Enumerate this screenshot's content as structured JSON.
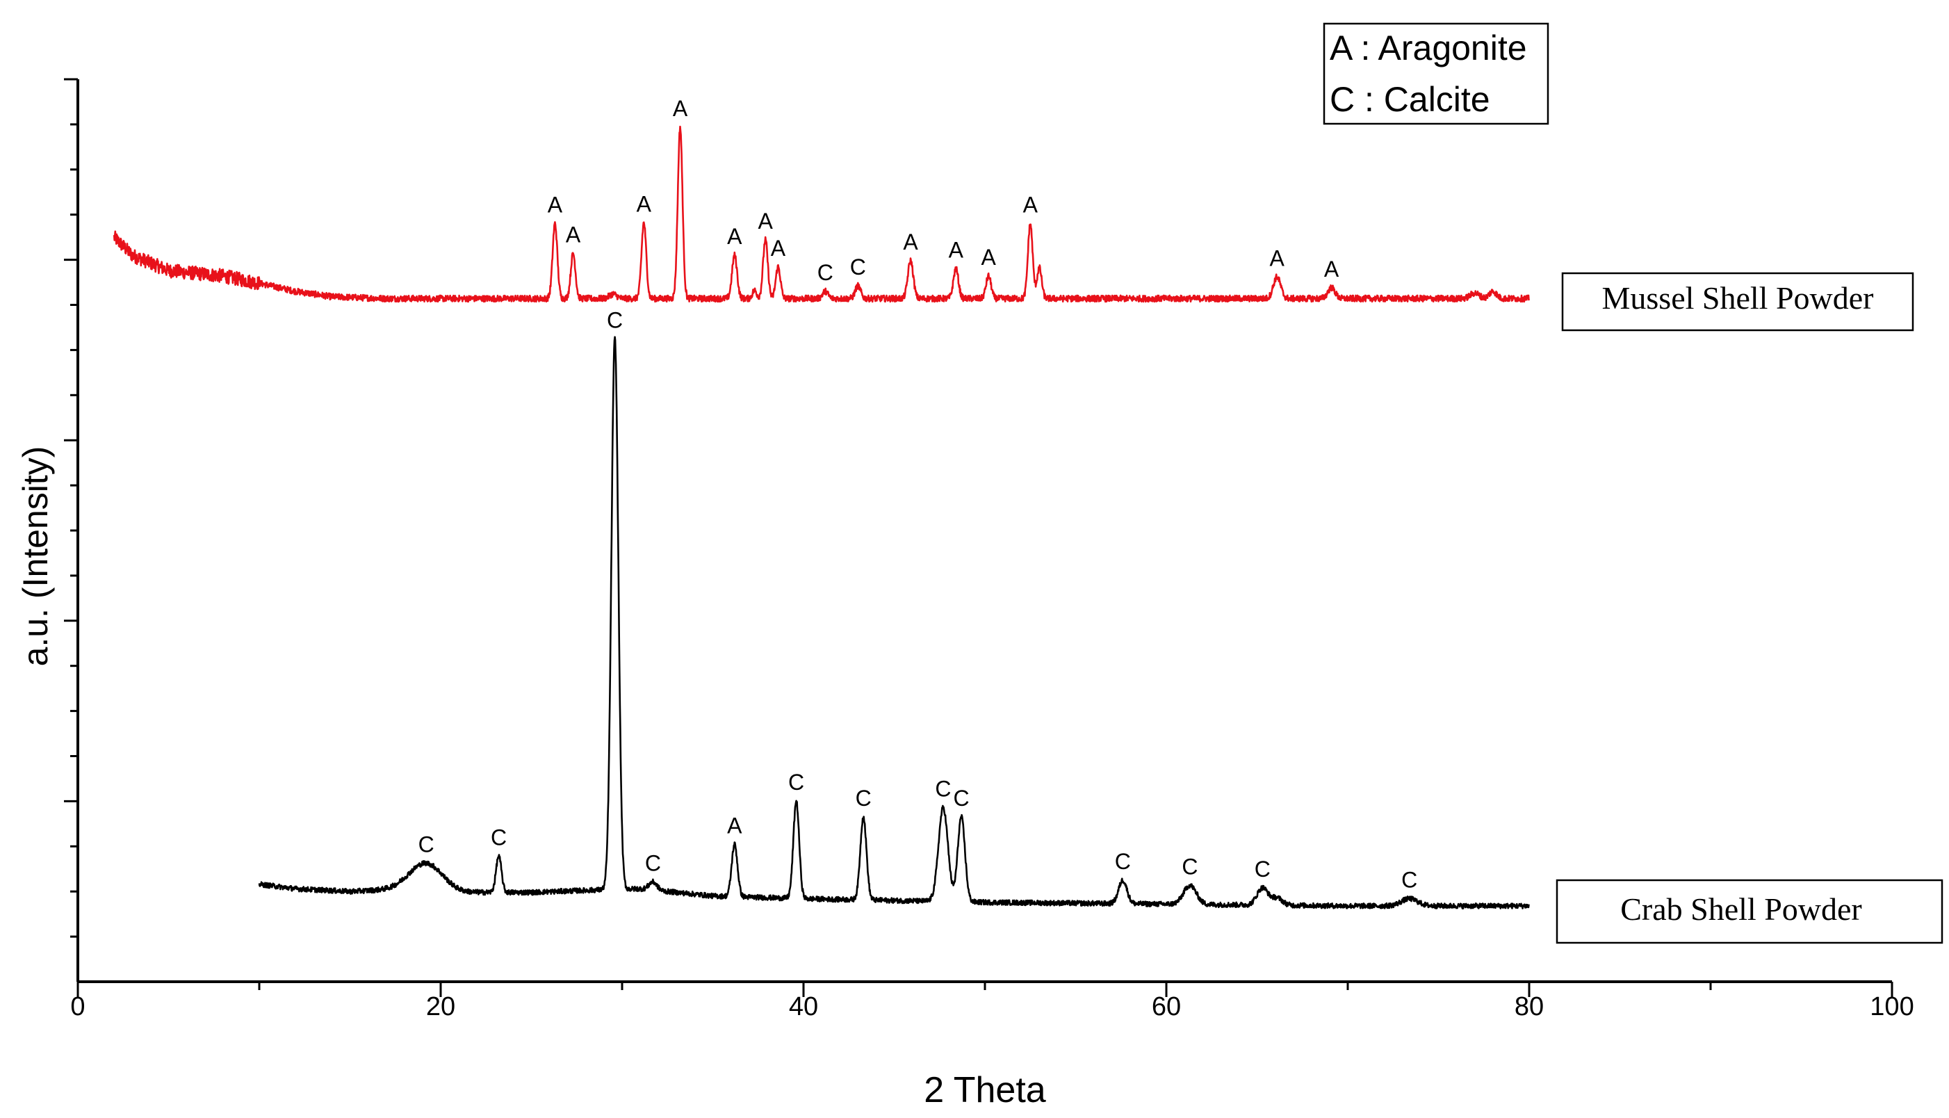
{
  "chart_data": {
    "type": "line",
    "xlabel": "2 Theta",
    "ylabel": "a.u. (Intensity)",
    "xlim": [
      0,
      100
    ],
    "ylim": [
      0,
      100
    ],
    "x_ticks": [
      0,
      20,
      40,
      60,
      80,
      100
    ],
    "y_tick_labels": "none",
    "grid": false,
    "legend": {
      "placement": "top-right",
      "entries": [
        "A : Aragonite",
        "C : Calcite"
      ]
    },
    "colors": {
      "mussel": "#e8111a",
      "crab": "#000000"
    },
    "series": [
      {
        "name": "Mussel Shell Powder",
        "baseline": 75.7,
        "background": [
          [
            2,
            82.5
          ],
          [
            3,
            80.5
          ],
          [
            5,
            78.8
          ],
          [
            8,
            78.2
          ],
          [
            10,
            77.4
          ],
          [
            12,
            76.5
          ],
          [
            14,
            75.9
          ],
          [
            17,
            75.7
          ],
          [
            80,
            75.7
          ]
        ],
        "peaks": [
          {
            "x": 26.3,
            "height": 8.3,
            "width": 0.13,
            "label": "A"
          },
          {
            "x": 27.3,
            "height": 5.0,
            "width": 0.13,
            "label": "A"
          },
          {
            "x": 29.5,
            "height": 0.5,
            "width": 0.2,
            "label": ""
          },
          {
            "x": 31.2,
            "height": 8.4,
            "width": 0.13,
            "label": "A"
          },
          {
            "x": 33.2,
            "height": 19.0,
            "width": 0.13,
            "label": "A"
          },
          {
            "x": 36.2,
            "height": 4.8,
            "width": 0.14,
            "label": "A"
          },
          {
            "x": 37.3,
            "height": 0.9,
            "width": 0.12,
            "label": ""
          },
          {
            "x": 37.9,
            "height": 6.5,
            "width": 0.13,
            "label": "A"
          },
          {
            "x": 38.6,
            "height": 3.5,
            "width": 0.13,
            "label": "A"
          },
          {
            "x": 41.2,
            "height": 0.8,
            "width": 0.15,
            "label": "C"
          },
          {
            "x": 43.0,
            "height": 1.4,
            "width": 0.15,
            "label": "C"
          },
          {
            "x": 45.9,
            "height": 4.2,
            "width": 0.15,
            "label": "A"
          },
          {
            "x": 48.4,
            "height": 3.3,
            "width": 0.14,
            "label": "A"
          },
          {
            "x": 50.2,
            "height": 2.5,
            "width": 0.14,
            "label": "A"
          },
          {
            "x": 52.5,
            "height": 8.3,
            "width": 0.13,
            "label": "A"
          },
          {
            "x": 53.0,
            "height": 3.4,
            "width": 0.13,
            "label": ""
          },
          {
            "x": 66.1,
            "height": 2.4,
            "width": 0.2,
            "label": "A"
          },
          {
            "x": 69.1,
            "height": 1.2,
            "width": 0.2,
            "label": "A"
          },
          {
            "x": 77.0,
            "height": 0.6,
            "width": 0.25,
            "label": ""
          },
          {
            "x": 78.0,
            "height": 0.8,
            "width": 0.2,
            "label": ""
          }
        ]
      },
      {
        "name": "Crab Shell Powder",
        "baseline": 8.4,
        "background": [
          [
            10,
            10.8
          ],
          [
            12,
            10.3
          ],
          [
            15,
            10.0
          ],
          [
            18,
            10.3
          ],
          [
            21,
            9.9
          ],
          [
            25,
            9.9
          ],
          [
            29,
            10.2
          ],
          [
            31,
            10.3
          ],
          [
            35,
            9.5
          ],
          [
            40,
            9.2
          ],
          [
            45,
            9.0
          ],
          [
            50,
            8.8
          ],
          [
            60,
            8.6
          ],
          [
            70,
            8.4
          ],
          [
            80,
            8.4
          ]
        ],
        "peaks": [
          {
            "x": 19.2,
            "height": 3.0,
            "width": 0.9,
            "label": "C"
          },
          {
            "x": 23.2,
            "height": 4.0,
            "width": 0.15,
            "label": "C"
          },
          {
            "x": 29.6,
            "height": 61.0,
            "width": 0.19,
            "label": "C"
          },
          {
            "x": 31.7,
            "height": 0.9,
            "width": 0.22,
            "label": "C"
          },
          {
            "x": 36.2,
            "height": 5.8,
            "width": 0.16,
            "label": "A"
          },
          {
            "x": 39.6,
            "height": 10.8,
            "width": 0.16,
            "label": "C"
          },
          {
            "x": 43.3,
            "height": 9.2,
            "width": 0.17,
            "label": "C"
          },
          {
            "x": 47.7,
            "height": 10.4,
            "width": 0.26,
            "label": "C"
          },
          {
            "x": 48.7,
            "height": 9.4,
            "width": 0.2,
            "label": "C"
          },
          {
            "x": 57.6,
            "height": 2.6,
            "width": 0.23,
            "label": "C"
          },
          {
            "x": 61.3,
            "height": 2.1,
            "width": 0.35,
            "label": "C"
          },
          {
            "x": 65.3,
            "height": 1.9,
            "width": 0.3,
            "label": "C"
          },
          {
            "x": 66.1,
            "height": 0.8,
            "width": 0.3,
            "label": ""
          },
          {
            "x": 73.4,
            "height": 0.8,
            "width": 0.45,
            "label": "C"
          }
        ]
      }
    ]
  }
}
